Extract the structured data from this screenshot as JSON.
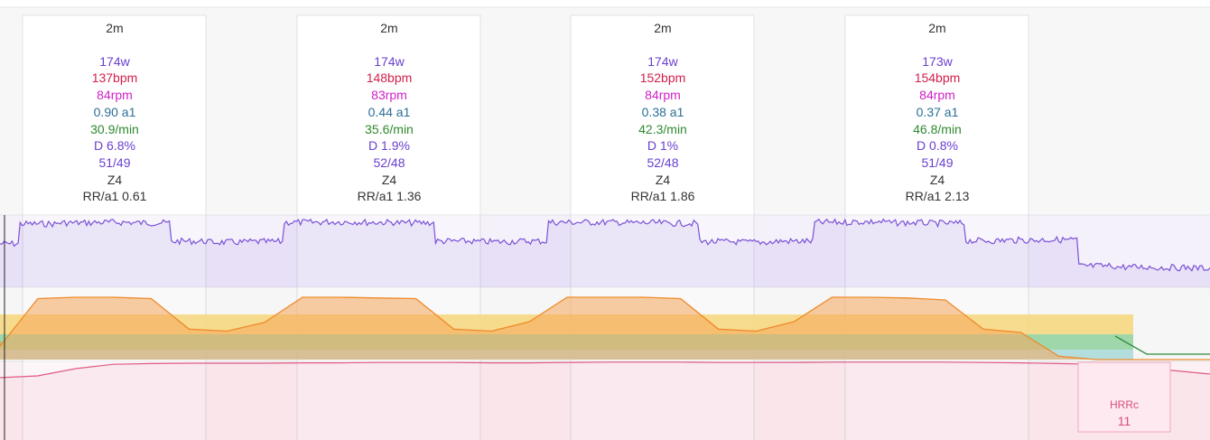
{
  "chart_data": {
    "type": "line",
    "intervals": [
      {
        "duration": "2m",
        "watts": "174w",
        "bpm": "137bpm",
        "rpm": "84rpm",
        "a1": "0.90 a1",
        "resp": "30.9/min",
        "decoupling": "D 6.8%",
        "balance": "51/49",
        "zone": "Z4",
        "rr_a1": "RR/a1 0.61"
      },
      {
        "duration": "2m",
        "watts": "174w",
        "bpm": "148bpm",
        "rpm": "83rpm",
        "a1": "0.44 a1",
        "resp": "35.6/min",
        "decoupling": "D 1.9%",
        "balance": "52/48",
        "zone": "Z4",
        "rr_a1": "RR/a1 1.36"
      },
      {
        "duration": "2m",
        "watts": "174w",
        "bpm": "152bpm",
        "rpm": "84rpm",
        "a1": "0.38 a1",
        "resp": "42.3/min",
        "decoupling": "D 1%",
        "balance": "52/48",
        "zone": "Z4",
        "rr_a1": "RR/a1 1.86"
      },
      {
        "duration": "2m",
        "watts": "173w",
        "bpm": "154bpm",
        "rpm": "84rpm",
        "a1": "0.37 a1",
        "resp": "46.8/min",
        "decoupling": "D 0.8%",
        "balance": "51/49",
        "zone": "Z4",
        "rr_a1": "RR/a1 2.13"
      }
    ],
    "series": [
      {
        "key": "power",
        "color": "#7b52d6",
        "values": [
          0.55,
          0.95,
          0.97,
          0.98,
          0.97,
          0.6,
          0.58,
          0.59,
          0.98,
          0.99,
          0.98,
          0.97,
          0.6,
          0.59,
          0.6,
          0.98,
          0.98,
          0.97,
          0.96,
          0.59,
          0.58,
          0.6,
          0.98,
          0.99,
          0.97,
          0.96,
          0.61,
          0.62,
          0.63,
          0.1,
          0.08,
          0.07,
          0.06
        ]
      },
      {
        "key": "zone_band",
        "color": "#ee8a2a",
        "values": [
          0.2,
          0.9,
          0.92,
          0.92,
          0.9,
          0.45,
          0.42,
          0.55,
          0.92,
          0.92,
          0.91,
          0.9,
          0.45,
          0.42,
          0.56,
          0.92,
          0.92,
          0.92,
          0.9,
          0.45,
          0.42,
          0.56,
          0.92,
          0.92,
          0.91,
          0.88,
          0.45,
          0.4,
          0.05,
          0.0,
          0.0,
          0.0,
          0.0
        ]
      },
      {
        "key": "heart_rate",
        "color": "#e05a84",
        "values": [
          0.55,
          0.6,
          0.8,
          0.92,
          0.94,
          0.95,
          0.95,
          0.95,
          0.96,
          0.96,
          0.97,
          0.97,
          0.97,
          0.96,
          0.96,
          0.97,
          0.98,
          0.98,
          0.98,
          0.97,
          0.97,
          0.97,
          0.98,
          0.98,
          0.98,
          0.98,
          0.97,
          0.96,
          0.94,
          0.92,
          0.85,
          0.75,
          0.65
        ]
      }
    ],
    "hrrc": {
      "label": "HRRc",
      "value": "11"
    },
    "colors": {
      "power": "#7b52d6",
      "heart_rate": "#e05a84",
      "tempo": "#f5a55a",
      "sweet": "#f7d67a",
      "endurance": "#8fd19e",
      "recovery": "#a8d8d8"
    }
  }
}
